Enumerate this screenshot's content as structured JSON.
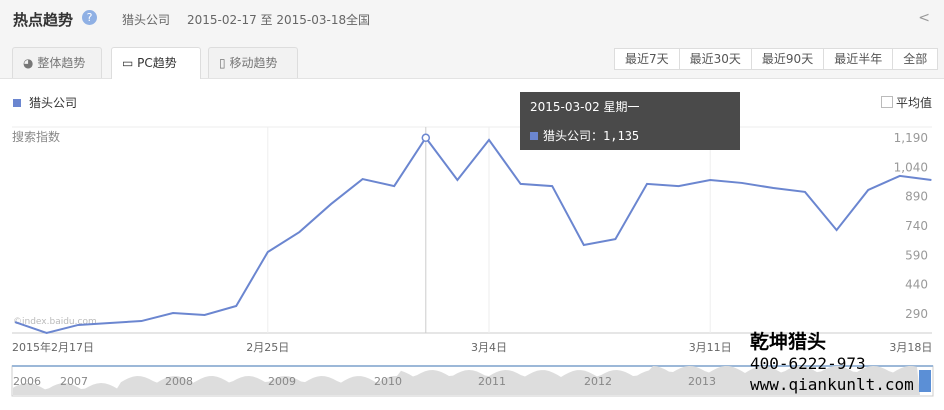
{
  "header": {
    "title": "热点趋势",
    "help_icon": "question-icon",
    "keyword": "猎头公司",
    "date_range": "2015-02-17 至 2015-03-18",
    "region": "全国",
    "share_icon": "share-icon"
  },
  "tabs": [
    {
      "label": "整体趋势",
      "icon": "pie-chart-icon"
    },
    {
      "label": "PC趋势",
      "icon": "monitor-icon",
      "active": true
    },
    {
      "label": "移动趋势",
      "icon": "mobile-icon"
    }
  ],
  "ranges": [
    "最近7天",
    "最近30天",
    "最近90天",
    "最近半年",
    "全部"
  ],
  "average_label": "平均值",
  "tooltip": {
    "date": "2015-03-02 星期一",
    "series": "猎头公司",
    "value": "1,135"
  },
  "watermark": {
    "line1": "乾坤猎头",
    "line2": "400-6222-973",
    "line3": "www.qiankunlt.com"
  },
  "copyright": "©index.baidu.com",
  "navigator_years": [
    "2006",
    "2007",
    "2008",
    "2009",
    "2010",
    "2011",
    "2012",
    "2013"
  ],
  "chart_data": {
    "type": "line",
    "ylabel": "搜索指数",
    "legend": "top-left",
    "series_color": "#6b86d0",
    "ylim": [
      137,
      1190
    ],
    "yticks": [
      "1,190",
      "1,040",
      "890",
      "740",
      "590",
      "440",
      "290"
    ],
    "ytick_values": [
      1190,
      1040,
      890,
      740,
      590,
      440,
      290
    ],
    "xtick_labels": [
      "2015年2月17日",
      "2月25日",
      "3月4日",
      "3月11日",
      "3月18日"
    ],
    "xtick_index": [
      0,
      8,
      15,
      22,
      29
    ],
    "x": [
      "2015-02-17",
      "2015-02-18",
      "2015-02-19",
      "2015-02-20",
      "2015-02-21",
      "2015-02-22",
      "2015-02-23",
      "2015-02-24",
      "2015-02-25",
      "2015-02-26",
      "2015-02-27",
      "2015-02-28",
      "2015-03-01",
      "2015-03-02",
      "2015-03-03",
      "2015-03-04",
      "2015-03-05",
      "2015-03-06",
      "2015-03-07",
      "2015-03-08",
      "2015-03-09",
      "2015-03-10",
      "2015-03-11",
      "2015-03-12",
      "2015-03-13",
      "2015-03-14",
      "2015-03-15",
      "2015-03-16",
      "2015-03-17",
      "2015-03-18"
    ],
    "series": [
      {
        "name": "猎头公司",
        "values": [
          193,
          137,
          178,
          188,
          198,
          239,
          229,
          275,
          551,
          653,
          796,
          924,
          888,
          1135,
          919,
          1124,
          899,
          888,
          587,
          617,
          899,
          888,
          919,
          904,
          878,
          858,
          663,
          868,
          940,
          919
        ]
      }
    ],
    "highlight_index": 13
  }
}
